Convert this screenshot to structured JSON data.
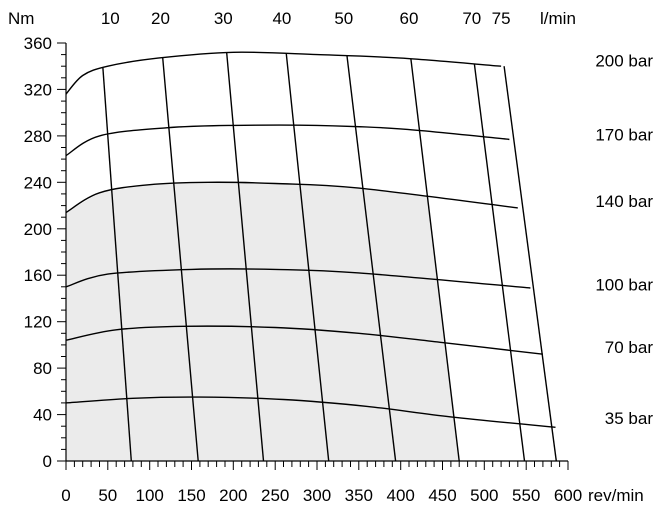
{
  "chart_data": {
    "type": "line",
    "title": "",
    "ylabel": "Nm",
    "xlabel": "rev/min",
    "top_axis_label": "l/min",
    "ylim": [
      0,
      360
    ],
    "xlim": [
      0,
      600
    ],
    "y_ticks": [
      0,
      40,
      80,
      120,
      160,
      200,
      240,
      280,
      320,
      360
    ],
    "x_ticks": [
      0,
      50,
      100,
      150,
      200,
      250,
      300,
      350,
      400,
      450,
      500,
      550,
      600
    ],
    "x_ticks_text": [
      "0",
      "50",
      "100",
      "150",
      "200",
      "250",
      "300",
      "350",
      "400",
      "450",
      "500",
      "550",
      "600"
    ],
    "y_ticks_text": [
      "0",
      "40",
      "80",
      "120",
      "160",
      "200",
      "240",
      "280",
      "320",
      "360"
    ],
    "top_ticks": [
      {
        "label": "10",
        "x": 53
      },
      {
        "label": "20",
        "x": 113
      },
      {
        "label": "30",
        "x": 188
      },
      {
        "label": "40",
        "x": 258
      },
      {
        "label": "50",
        "x": 332
      },
      {
        "label": "60",
        "x": 410
      },
      {
        "label": "70",
        "x": 485
      },
      {
        "label": "75",
        "x": 520
      }
    ],
    "pressure_series": [
      {
        "name": "200 bar",
        "points": [
          [
            0,
            316
          ],
          [
            20,
            332
          ],
          [
            50,
            340
          ],
          [
            110,
            347
          ],
          [
            200,
            352
          ],
          [
            300,
            350
          ],
          [
            400,
            347
          ],
          [
            520,
            340
          ]
        ],
        "label_y": 345
      },
      {
        "name": "170 bar",
        "points": [
          [
            0,
            263
          ],
          [
            40,
            280
          ],
          [
            120,
            287
          ],
          [
            200,
            289
          ],
          [
            300,
            289
          ],
          [
            400,
            286
          ],
          [
            530,
            277
          ]
        ],
        "label_y": 281
      },
      {
        "name": "140 bar",
        "points": [
          [
            0,
            214
          ],
          [
            40,
            231
          ],
          [
            100,
            238
          ],
          [
            170,
            240
          ],
          [
            250,
            239
          ],
          [
            350,
            235
          ],
          [
            540,
            218
          ]
        ],
        "label_y": 224
      },
      {
        "name": "100 bar",
        "points": [
          [
            0,
            150
          ],
          [
            50,
            161
          ],
          [
            150,
            165
          ],
          [
            250,
            165
          ],
          [
            350,
            162
          ],
          [
            555,
            149
          ]
        ],
        "label_y": 152
      },
      {
        "name": "70 bar",
        "points": [
          [
            0,
            104
          ],
          [
            60,
            113
          ],
          [
            140,
            116
          ],
          [
            250,
            115
          ],
          [
            350,
            110
          ],
          [
            450,
            102
          ],
          [
            570,
            92
          ]
        ],
        "label_y": 98
      },
      {
        "name": "35 bar",
        "points": [
          [
            0,
            50
          ],
          [
            80,
            54
          ],
          [
            160,
            55
          ],
          [
            260,
            53
          ],
          [
            360,
            47
          ],
          [
            460,
            38
          ],
          [
            585,
            29
          ]
        ],
        "label_y": 37
      }
    ],
    "flow_lines": [
      {
        "label": "10",
        "bottom_x": 78,
        "top_x": 42
      },
      {
        "label": "20",
        "bottom_x": 158,
        "top_x": 114
      },
      {
        "label": "30",
        "bottom_x": 236,
        "top_x": 191
      },
      {
        "label": "40",
        "bottom_x": 314,
        "top_x": 262
      },
      {
        "label": "50",
        "bottom_x": 394,
        "top_x": 334
      },
      {
        "label": "60",
        "bottom_x": 470,
        "top_x": 410
      },
      {
        "label": "70",
        "bottom_x": 548,
        "top_x": 485
      },
      {
        "label": "75",
        "bottom_x": 586,
        "top_x": 520
      }
    ],
    "continuous_region": {
      "color": "#ebebeb",
      "max_pressure": "140 bar",
      "max_flow": "60"
    },
    "grid": false,
    "colors": {
      "line": "#000000",
      "shade": "#ebebeb"
    }
  }
}
